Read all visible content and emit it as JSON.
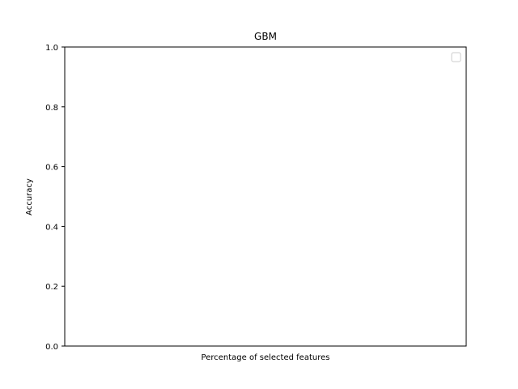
{
  "chart_data": {
    "type": "line",
    "title": "GBM",
    "xlabel": "Percentage of selected features",
    "ylabel": "Accuracy",
    "ylim": [
      0,
      1
    ],
    "y_ticks": [
      "0.0",
      "0.2",
      "0.4",
      "0.6",
      "0.8",
      "1.0"
    ],
    "x_ticks": [],
    "series": [],
    "legend": {
      "placement": "top-right",
      "entries": []
    },
    "grid": false
  }
}
